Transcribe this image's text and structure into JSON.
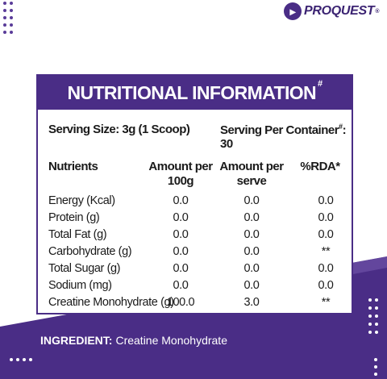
{
  "brand": {
    "name": "PROQUEST",
    "mark": "®"
  },
  "panel": {
    "title": "NUTRITIONAL INFORMATION",
    "title_mark": "#",
    "serving_size": "Serving Size: 3g (1 Scoop)",
    "servings_per_container": {
      "label": "Serving Per Container",
      "mark": "#",
      "value": ": 30"
    }
  },
  "table": {
    "header": [
      "Nutrients",
      "Amount per 100g",
      "Amount per serve",
      "%RDA*"
    ],
    "rows": [
      [
        "Energy (Kcal)",
        "0.0",
        "0.0",
        "0.0"
      ],
      [
        "Protein (g)",
        "0.0",
        "0.0",
        "0.0"
      ],
      [
        "Total Fat (g)",
        "0.0",
        "0.0",
        "0.0"
      ],
      [
        "Carbohydrate (g)",
        "0.0",
        "0.0",
        "**"
      ],
      [
        "Total Sugar (g)",
        "0.0",
        "0.0",
        "0.0"
      ],
      [
        "Sodium (mg)",
        "0.0",
        "0.0",
        "0.0"
      ],
      [
        "Creatine Monohydrate (g)",
        "100.0",
        "3.0",
        "**"
      ]
    ]
  },
  "ingredient": {
    "label": "INGREDIENT:",
    "text": "Creatine Monohydrate"
  }
}
